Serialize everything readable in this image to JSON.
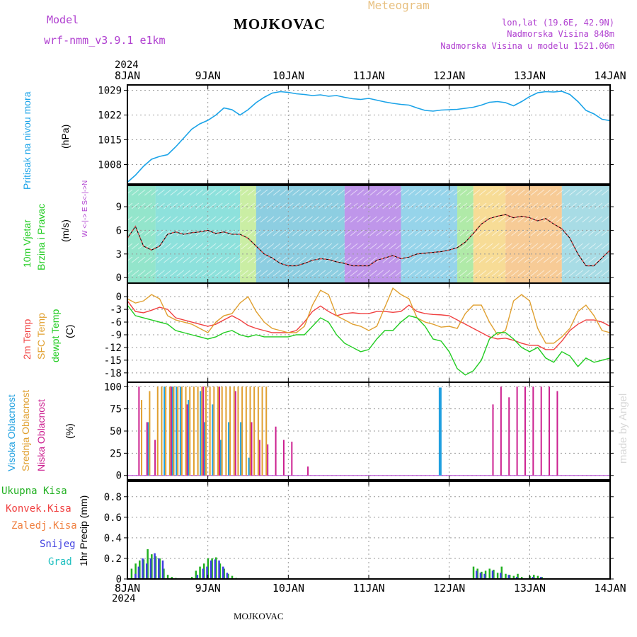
{
  "header": {
    "model_label": "Model",
    "model_name": "wrf-nmm_v3.9.1  e1km",
    "station": "MOJKOVAC",
    "product": "Meteogram",
    "coords": "lon,lat (19.6E, 42.9N)",
    "elevation": "Nadmorska Visina 848m",
    "model_elevation": "Nadmorska Visina u modelu 1521.06m",
    "footer_station": "MOJKOVAC",
    "credit": "made by Angel"
  },
  "time_axis": {
    "year": "2024",
    "labels": [
      "8JAN",
      "9JAN",
      "10JAN",
      "11JAN",
      "12JAN",
      "13JAN",
      "14JAN"
    ]
  },
  "colors": {
    "pressure": "#1aa3e8",
    "temp2m": "#f04040",
    "sfc": "#e0a030",
    "dewpt": "#20cc20",
    "high_cloud": "#20a0e0",
    "mid_cloud": "#e0a030",
    "low_cloud": "#cc2090",
    "total_precip": "#20b020",
    "snow": "#4040e0",
    "title_purple": "#b040d0",
    "title_orange": "#e8c080"
  },
  "chart_data": [
    {
      "type": "line",
      "title": "Pritisak na nivou mora",
      "ylabel": "(hPa)",
      "yticks": [
        1008,
        1015,
        1022,
        1029
      ],
      "ylim": [
        1002.5,
        1030.5
      ],
      "grid": true,
      "series": [
        {
          "name": "Pritisak na nivou mora",
          "x": [
            0,
            0.1,
            0.2,
            0.3,
            0.4,
            0.5,
            0.6,
            0.7,
            0.8,
            0.9,
            1.0,
            1.1,
            1.2,
            1.3,
            1.4,
            1.5,
            1.6,
            1.7,
            1.8,
            1.9,
            2.0,
            2.1,
            2.2,
            2.3,
            2.4,
            2.5,
            2.6,
            2.7,
            2.8,
            2.9,
            3.0,
            3.1,
            3.2,
            3.3,
            3.4,
            3.5,
            3.6,
            3.7,
            3.8,
            3.9,
            4.0,
            4.1,
            4.2,
            4.3,
            4.4,
            4.5,
            4.6,
            4.7,
            4.8,
            4.9,
            5.0,
            5.1,
            5.2,
            5.3,
            5.4,
            5.5,
            5.6,
            5.7,
            5.8,
            5.9,
            6.0
          ],
          "values": [
            1003,
            1005,
            1007.5,
            1009.5,
            1010.3,
            1010.8,
            1013,
            1015.5,
            1018,
            1019.5,
            1020.5,
            1022,
            1024,
            1023.5,
            1022,
            1023.5,
            1025.5,
            1027,
            1028.2,
            1028.6,
            1028.4,
            1028,
            1027.8,
            1027.5,
            1027.7,
            1027.3,
            1027.5,
            1027,
            1026.6,
            1026.4,
            1026.7,
            1026.2,
            1025.7,
            1025.3,
            1025,
            1024.8,
            1024,
            1023.3,
            1023.1,
            1023.4,
            1023.5,
            1023.6,
            1023.9,
            1024.2,
            1024.8,
            1025.6,
            1025.8,
            1025.5,
            1024.6,
            1025.8,
            1027.2,
            1028.3,
            1028.6,
            1028.5,
            1028.7,
            1027.8,
            1025.8,
            1023.3,
            1022.3,
            1020.8,
            1020.4
          ]
        }
      ]
    },
    {
      "type": "line",
      "title": "10m Vjetar Brzina i Pravac",
      "ylabel": "(m/s)",
      "yticks": [
        0,
        3,
        6,
        9
      ],
      "ylim": [
        -0.7,
        11.7
      ],
      "compass_label": "W <-|-> E   S<-|->N",
      "grid": true,
      "series": [
        {
          "name": "Brzina",
          "x": [
            0,
            0.1,
            0.2,
            0.3,
            0.4,
            0.5,
            0.6,
            0.7,
            0.8,
            0.9,
            1.0,
            1.1,
            1.2,
            1.3,
            1.4,
            1.5,
            1.6,
            1.7,
            1.8,
            1.9,
            2.0,
            2.1,
            2.2,
            2.3,
            2.4,
            2.5,
            2.6,
            2.7,
            2.8,
            2.9,
            3.0,
            3.1,
            3.2,
            3.3,
            3.4,
            3.5,
            3.6,
            3.7,
            3.8,
            3.9,
            4.0,
            4.1,
            4.2,
            4.3,
            4.4,
            4.5,
            4.6,
            4.7,
            4.8,
            4.9,
            5.0,
            5.1,
            5.2,
            5.3,
            5.4,
            5.5,
            5.6,
            5.7,
            5.8,
            5.9,
            6.0
          ],
          "values": [
            5,
            6.5,
            4,
            3.5,
            4,
            5.5,
            5.8,
            5.5,
            5.7,
            5.8,
            6,
            5.6,
            5.8,
            5.5,
            5.5,
            5,
            4,
            3,
            2.5,
            1.8,
            1.5,
            1.5,
            1.8,
            2.2,
            2.4,
            2.3,
            2,
            1.8,
            1.5,
            1.5,
            1.5,
            2.2,
            2.5,
            2.8,
            2.4,
            2.6,
            3,
            3.1,
            3.2,
            3.3,
            3.5,
            3.8,
            4.5,
            5.6,
            6.8,
            7.5,
            7.8,
            8,
            7.6,
            7.8,
            7.6,
            7.2,
            7.5,
            6.8,
            6.2,
            5,
            3,
            1.5,
            1.5,
            2.5,
            3.5
          ]
        }
      ]
    },
    {
      "type": "line",
      "ylabel": "(C)",
      "yticks": [
        0,
        -3,
        -6,
        -9,
        -12,
        -15,
        -18
      ],
      "ylim": [
        -20.2,
        3.2
      ],
      "grid": true,
      "series": [
        {
          "name": "2m Temp",
          "x": [
            0,
            0.1,
            0.2,
            0.3,
            0.4,
            0.5,
            0.6,
            0.7,
            0.8,
            0.9,
            1.0,
            1.1,
            1.2,
            1.3,
            1.4,
            1.5,
            1.6,
            1.7,
            1.8,
            1.9,
            2.0,
            2.1,
            2.2,
            2.3,
            2.4,
            2.5,
            2.6,
            2.7,
            2.8,
            2.9,
            3.0,
            3.1,
            3.2,
            3.3,
            3.4,
            3.5,
            3.6,
            3.7,
            3.8,
            3.9,
            4.0,
            4.1,
            4.2,
            4.3,
            4.4,
            4.5,
            4.6,
            4.7,
            4.8,
            4.9,
            5.0,
            5.1,
            5.2,
            5.3,
            5.4,
            5.5,
            5.6,
            5.7,
            5.8,
            5.9,
            6.0
          ],
          "values": [
            -1,
            -3.5,
            -3.8,
            -3.2,
            -2.5,
            -3,
            -5,
            -5.5,
            -6,
            -6.5,
            -7,
            -6.5,
            -5.5,
            -4.5,
            -5.5,
            -6.8,
            -7.5,
            -8,
            -8.5,
            -8.5,
            -8.5,
            -8,
            -6,
            -3.5,
            -2.2,
            -3.5,
            -4.5,
            -4,
            -3.8,
            -4,
            -4,
            -3.5,
            -3.5,
            -3.7,
            -3.5,
            -2,
            -3.5,
            -4,
            -4.2,
            -4.3,
            -4.5,
            -5.5,
            -6.5,
            -7.5,
            -8.5,
            -9.5,
            -10,
            -9.8,
            -10.3,
            -11,
            -11.5,
            -11.5,
            -12.5,
            -12.5,
            -10.5,
            -8,
            -6.5,
            -5.5,
            -5.5,
            -6,
            -7
          ]
        },
        {
          "name": "SFC Temp",
          "x": [
            0,
            0.1,
            0.2,
            0.3,
            0.4,
            0.5,
            0.6,
            0.7,
            0.8,
            0.9,
            1.0,
            1.1,
            1.2,
            1.3,
            1.4,
            1.5,
            1.6,
            1.7,
            1.8,
            1.9,
            2.0,
            2.1,
            2.2,
            2.3,
            2.4,
            2.5,
            2.6,
            2.7,
            2.8,
            2.9,
            3.0,
            3.1,
            3.2,
            3.3,
            3.4,
            3.5,
            3.6,
            3.7,
            3.8,
            3.9,
            4.0,
            4.1,
            4.2,
            4.3,
            4.4,
            4.5,
            4.6,
            4.7,
            4.8,
            4.9,
            5.0,
            5.1,
            5.2,
            5.3,
            5.4,
            5.5,
            5.6,
            5.7,
            5.8,
            5.9,
            6.0
          ],
          "values": [
            -0.5,
            -1.5,
            -1,
            0.5,
            -0.5,
            -4.5,
            -5.5,
            -6,
            -6.5,
            -7.5,
            -8.5,
            -6,
            -4.5,
            -4,
            -1.5,
            0,
            -3.5,
            -6,
            -7.5,
            -8,
            -8.5,
            -8.5,
            -7,
            -2,
            1.5,
            0.5,
            -4.5,
            -5.5,
            -6.5,
            -7,
            -8,
            -7,
            -2.5,
            2,
            0.5,
            -0.5,
            -5,
            -6,
            -6.5,
            -7.2,
            -7,
            -7.5,
            -4,
            -2,
            -2,
            -6,
            -9,
            -8,
            -1,
            0.5,
            -1,
            -7.5,
            -11,
            -11,
            -9.5,
            -7.5,
            -3.5,
            -2,
            -4.5,
            -8,
            -8.5
          ]
        },
        {
          "name": "dewpt Temp",
          "x": [
            0,
            0.1,
            0.2,
            0.3,
            0.4,
            0.5,
            0.6,
            0.7,
            0.8,
            0.9,
            1.0,
            1.1,
            1.2,
            1.3,
            1.4,
            1.5,
            1.6,
            1.7,
            1.8,
            1.9,
            2.0,
            2.1,
            2.2,
            2.3,
            2.4,
            2.5,
            2.6,
            2.7,
            2.8,
            2.9,
            3.0,
            3.1,
            3.2,
            3.3,
            3.4,
            3.5,
            3.6,
            3.7,
            3.8,
            3.9,
            4.0,
            4.1,
            4.2,
            4.3,
            4.4,
            4.5,
            4.6,
            4.7,
            4.8,
            4.9,
            5.0,
            5.1,
            5.2,
            5.3,
            5.4,
            5.5,
            5.6,
            5.7,
            5.8,
            5.9,
            6.0
          ],
          "values": [
            -2,
            -4.5,
            -5,
            -5.5,
            -6,
            -6.5,
            -8,
            -8.5,
            -9,
            -9.5,
            -10,
            -9.5,
            -8.5,
            -8,
            -9,
            -9.5,
            -9,
            -9.5,
            -9.5,
            -9.5,
            -9.5,
            -9,
            -9,
            -7,
            -5,
            -6,
            -9,
            -11,
            -12,
            -13,
            -12.5,
            -10,
            -8,
            -8,
            -6,
            -4.5,
            -5,
            -7,
            -10,
            -10.5,
            -13,
            -17,
            -18.5,
            -17.5,
            -15,
            -10,
            -8.5,
            -8.5,
            -10,
            -12,
            -13,
            -12,
            -14.5,
            -15.5,
            -13,
            -14,
            -16.5,
            -14.5,
            -15.5,
            -15,
            -14.5
          ]
        }
      ]
    },
    {
      "type": "bar",
      "ylabel": "(%)",
      "yticks": [
        0,
        25,
        50,
        75,
        100
      ],
      "ylim": [
        -5,
        105
      ],
      "grid": true,
      "series": [
        {
          "name": "Visoka Oblacnost",
          "x": [
            0.25,
            0.45,
            0.55,
            0.6,
            0.65,
            0.75,
            0.9,
            0.95,
            1.05,
            1.15,
            1.25,
            1.4,
            1.5,
            3.87
          ],
          "values": [
            60,
            100,
            100,
            100,
            100,
            85,
            95,
            60,
            80,
            40,
            60,
            60,
            20,
            99
          ]
        },
        {
          "name": "Srednja Oblacnost",
          "x": [
            0.15,
            0.25,
            0.35,
            0.4,
            0.45,
            0.5,
            0.55,
            0.6,
            0.65,
            0.7,
            0.75,
            0.8,
            0.85,
            0.9,
            0.95,
            1.0,
            1.05,
            1.1,
            1.15,
            1.2,
            1.25,
            1.3,
            1.35,
            1.4,
            1.45,
            1.5,
            1.55,
            1.6,
            1.65,
            1.7
          ],
          "values": [
            85,
            95,
            100,
            100,
            100,
            100,
            100,
            100,
            100,
            100,
            100,
            100,
            100,
            100,
            100,
            100,
            100,
            100,
            100,
            100,
            100,
            100,
            100,
            100,
            100,
            100,
            100,
            100,
            100,
            100
          ]
        },
        {
          "name": "Niska Oblacnost",
          "x": [
            0.1,
            0.2,
            0.3,
            0.5,
            0.7,
            0.9,
            1.1,
            1.3,
            1.5,
            1.6,
            1.7,
            1.8,
            1.9,
            2.0,
            2.2,
            4.5,
            4.6,
            4.7,
            4.8,
            4.9,
            5.0,
            5.1,
            5.2,
            5.3
          ],
          "values": [
            100,
            60,
            40,
            100,
            80,
            100,
            100,
            95,
            60,
            40,
            35,
            55,
            40,
            38,
            10,
            80,
            100,
            88,
            100,
            100,
            100,
            100,
            100,
            95
          ]
        }
      ]
    },
    {
      "type": "bar",
      "ylabel": "1hr Precip (mm)",
      "yticks": [
        0,
        0.2,
        0.4,
        0.6,
        0.8
      ],
      "ylim": [
        0,
        0.95
      ],
      "grid": true,
      "series": [
        {
          "name": "Ukupna Kisa",
          "x": [
            0.05,
            0.1,
            0.15,
            0.2,
            0.25,
            0.3,
            0.35,
            0.4,
            0.45,
            0.5,
            0.55,
            0.6,
            0.8,
            0.85,
            0.9,
            0.95,
            1.0,
            1.05,
            1.1,
            1.15,
            1.2,
            1.25,
            1.3,
            1.35,
            4.3,
            4.35,
            4.4,
            4.45,
            4.5,
            4.55,
            4.6,
            4.65,
            4.7,
            4.75,
            4.8,
            4.85,
            4.9,
            5.0,
            5.05,
            5.1,
            5.15
          ],
          "values": [
            0.1,
            0.15,
            0.18,
            0.19,
            0.29,
            0.24,
            0.22,
            0.2,
            0.1,
            0.04,
            0.02,
            0.01,
            0.02,
            0.08,
            0.12,
            0.15,
            0.2,
            0.2,
            0.21,
            0.15,
            0.1,
            0.05,
            0.03,
            0.01,
            0.12,
            0.1,
            0.07,
            0.08,
            0.1,
            0.09,
            0.06,
            0.12,
            0.05,
            0.04,
            0.03,
            0.05,
            0.02,
            0.03,
            0.04,
            0.03,
            0.02
          ]
        },
        {
          "name": "Snijeg",
          "x": [
            0.08,
            0.12,
            0.17,
            0.22,
            0.27,
            0.32,
            0.37,
            0.42,
            0.85,
            0.92,
            0.97,
            1.02,
            1.07,
            1.12,
            1.17,
            1.22,
            4.32,
            4.37,
            4.42,
            4.52,
            4.62,
            4.72,
            4.82,
            5.02,
            5.12
          ],
          "values": [
            0.05,
            0.12,
            0.2,
            0.15,
            0.2,
            0.25,
            0.2,
            0.18,
            0.04,
            0.1,
            0.12,
            0.18,
            0.19,
            0.18,
            0.12,
            0.06,
            0.08,
            0.06,
            0.05,
            0.08,
            0.06,
            0.04,
            0.02,
            0.02,
            0.02
          ]
        }
      ]
    }
  ],
  "left_labels": {
    "pressure": "Pritisak na nivou mora",
    "wind1": "10m Vjetar",
    "wind2": "Brzina i Pravac",
    "temp_2m": "2m Temp",
    "temp_sfc": "SFC Temp",
    "temp_dew": "dewpt Temp",
    "cloud_high": "Visoka Oblacnost",
    "cloud_mid": "Srednja Oblacnost",
    "cloud_low": "Niska Oblacnost",
    "precip_total": "Ukupna Kisa",
    "precip_conv": "Konvek.Kisa",
    "precip_frz": "Zaledj.Kisa",
    "precip_snow": "Snijeg",
    "precip_hail": "Grad"
  }
}
